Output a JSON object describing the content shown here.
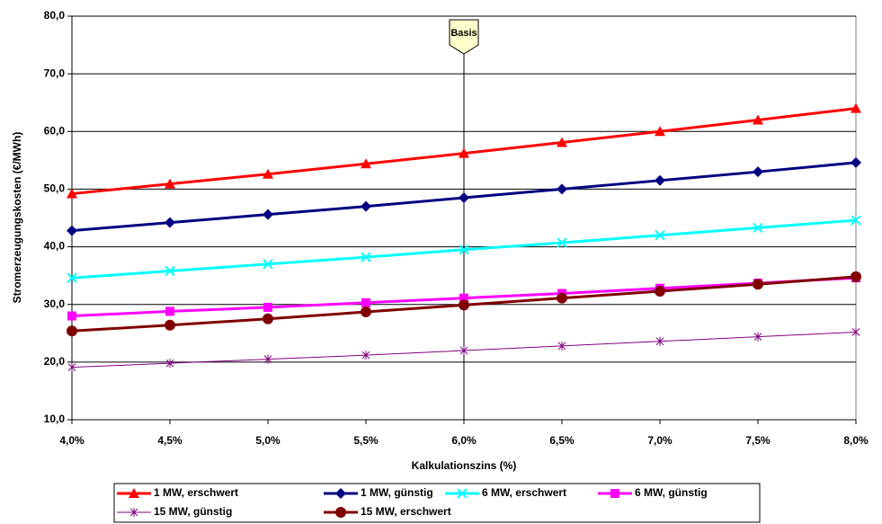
{
  "chart_data": {
    "type": "line",
    "y_label": "Stromerzeugungskosten (€/MWh)",
    "x_label": "Kalkulationszins (%)",
    "annotation": {
      "text": "Basis",
      "x": 6.0
    },
    "x": [
      4.0,
      4.5,
      5.0,
      5.5,
      6.0,
      6.5,
      7.0,
      7.5,
      8.0
    ],
    "xlim": [
      4.0,
      8.0
    ],
    "xticks": [
      {
        "value": 4.0,
        "label": "4,0%"
      },
      {
        "value": 4.5,
        "label": "4,5%"
      },
      {
        "value": 5.0,
        "label": "5,0%"
      },
      {
        "value": 5.5,
        "label": "5,5%"
      },
      {
        "value": 6.0,
        "label": "6,0%"
      },
      {
        "value": 6.5,
        "label": "6,5%"
      },
      {
        "value": 7.0,
        "label": "7,0%"
      },
      {
        "value": 7.5,
        "label": "7,5%"
      },
      {
        "value": 8.0,
        "label": "8,0%"
      }
    ],
    "ylim": [
      10,
      80
    ],
    "yticks": [
      {
        "value": 10,
        "label": "10,0"
      },
      {
        "value": 20,
        "label": "20,0"
      },
      {
        "value": 30,
        "label": "30,0"
      },
      {
        "value": 40,
        "label": "40,0"
      },
      {
        "value": 50,
        "label": "50,0"
      },
      {
        "value": 60,
        "label": "60,0"
      },
      {
        "value": 70,
        "label": "70,0"
      },
      {
        "value": 80,
        "label": "80,0"
      }
    ],
    "grid": true,
    "legend": "bottom",
    "series": [
      {
        "name": "1 MW, erschwert",
        "color": "#ff0000",
        "marker": "triangle",
        "values": [
          49.2,
          50.9,
          52.6,
          54.4,
          56.2,
          58.1,
          60.0,
          62.0,
          64.0
        ]
      },
      {
        "name": "1 MW, günstig",
        "color": "#000080",
        "marker": "diamond",
        "values": [
          42.8,
          44.2,
          45.6,
          47.0,
          48.5,
          50.0,
          51.5,
          53.0,
          54.6
        ]
      },
      {
        "name": "6 MW, erschwert",
        "color": "#00ffff",
        "marker": "cross",
        "values": [
          34.6,
          35.8,
          37.0,
          38.2,
          39.5,
          40.7,
          42.0,
          43.3,
          44.6
        ]
      },
      {
        "name": "6 MW, günstig",
        "color": "#ff00ff",
        "marker": "square",
        "values": [
          28.0,
          28.8,
          29.5,
          30.3,
          31.1,
          31.9,
          32.8,
          33.7,
          34.6
        ]
      },
      {
        "name": "15 MW, günstig",
        "color": "#800080",
        "marker": "star",
        "values": [
          19.1,
          19.8,
          20.5,
          21.2,
          22.0,
          22.8,
          23.6,
          24.4,
          25.2
        ]
      },
      {
        "name": "15 MW, erschwert",
        "color": "#800000",
        "marker": "circle",
        "values": [
          25.4,
          26.4,
          27.5,
          28.7,
          29.9,
          31.1,
          32.3,
          33.5,
          34.8
        ]
      }
    ]
  }
}
